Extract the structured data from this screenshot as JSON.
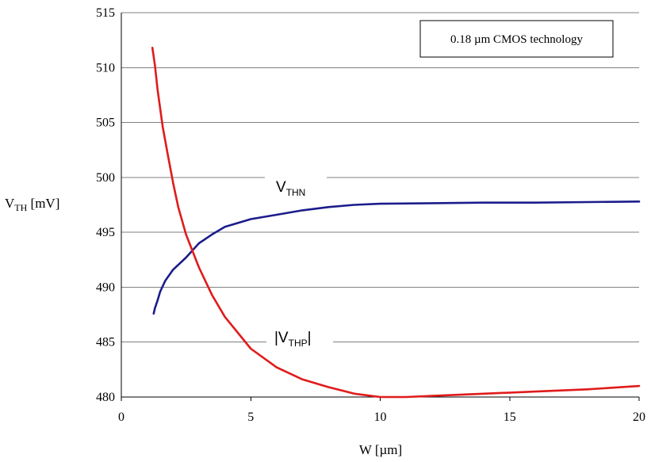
{
  "chart_data": {
    "type": "line",
    "title": "",
    "xlabel": "W [µm]",
    "ylabel": {
      "main": "V",
      "sub": "TH",
      "unit": " [mV]"
    },
    "xlim": [
      0,
      20
    ],
    "ylim": [
      480,
      515
    ],
    "xticks": [
      "0",
      "5",
      "10",
      "15",
      "20"
    ],
    "yticks": [
      "480",
      "485",
      "490",
      "495",
      "500",
      "505",
      "510",
      "515"
    ],
    "grid": "horizontal",
    "annotation": "0.18 µm CMOS technology",
    "series": [
      {
        "name": "V",
        "name_sub": "THN",
        "color": "#1c1c8c",
        "x": [
          1.25,
          1.3,
          1.4,
          1.5,
          1.7,
          2.0,
          2.5,
          3.0,
          3.5,
          4.0,
          5.0,
          6.0,
          7.0,
          8.0,
          9.0,
          10.0,
          12.0,
          14.0,
          16.0,
          18.0,
          20.0
        ],
        "y": [
          487.6,
          488.1,
          488.8,
          489.6,
          490.6,
          491.6,
          492.7,
          494.0,
          494.8,
          495.5,
          496.2,
          496.6,
          497.0,
          497.3,
          497.5,
          497.6,
          497.65,
          497.7,
          497.7,
          497.75,
          497.8
        ]
      },
      {
        "name": "|V",
        "name_sub": "THP",
        "name_suffix": "|",
        "color": "#e01b1b",
        "x": [
          1.2,
          1.3,
          1.4,
          1.6,
          1.8,
          2.0,
          2.2,
          2.5,
          3.0,
          3.5,
          4.0,
          5.0,
          6.0,
          7.0,
          8.0,
          9.0,
          10.0,
          11.0,
          12.0,
          14.0,
          16.0,
          18.0,
          20.0
        ],
        "y": [
          511.8,
          510.2,
          508.0,
          504.6,
          502.0,
          499.5,
          497.3,
          494.8,
          491.8,
          489.3,
          487.3,
          484.4,
          482.7,
          481.6,
          480.9,
          480.3,
          480.0,
          480.0,
          480.1,
          480.3,
          480.5,
          480.7,
          481.0
        ]
      }
    ]
  }
}
